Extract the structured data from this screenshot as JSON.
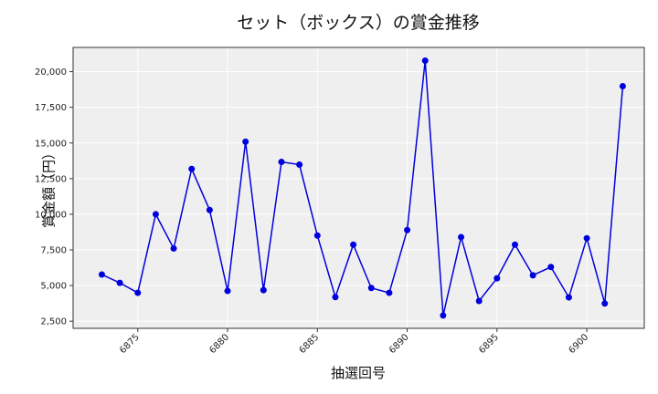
{
  "chart_data": {
    "type": "line",
    "title": "セット（ボックス）の賞金推移",
    "xlabel": "抽選回号",
    "ylabel": "賞金額（円）",
    "x": [
      6873,
      6874,
      6875,
      6876,
      6877,
      6878,
      6879,
      6880,
      6881,
      6882,
      6883,
      6884,
      6885,
      6886,
      6887,
      6888,
      6889,
      6890,
      6891,
      6892,
      6893,
      6894,
      6895,
      6896,
      6897,
      6898,
      6899,
      6900,
      6901,
      6902
    ],
    "series": [
      {
        "name": "賞金額",
        "color": "#0000dd",
        "marker": "circle",
        "values": [
          5770,
          5190,
          4490,
          10000,
          7600,
          13180,
          10300,
          4620,
          15090,
          4680,
          13670,
          13480,
          8510,
          4190,
          7870,
          4830,
          4490,
          8890,
          20770,
          2900,
          8400,
          3920,
          5510,
          7870,
          5720,
          6300,
          4170,
          8320,
          3740,
          18980
        ]
      }
    ],
    "xticks": [
      "6875",
      "6880",
      "6885",
      "6890",
      "6895",
      "6900"
    ],
    "yticks": [
      "2,500",
      "5,000",
      "7,500",
      "10,000",
      "12,500",
      "15,000",
      "17,500",
      "20,000"
    ],
    "ylim": [
      2000,
      21700
    ],
    "xlim": [
      6871.4,
      6903.2
    ],
    "grid": true,
    "legend": false,
    "background": "#efefef"
  }
}
